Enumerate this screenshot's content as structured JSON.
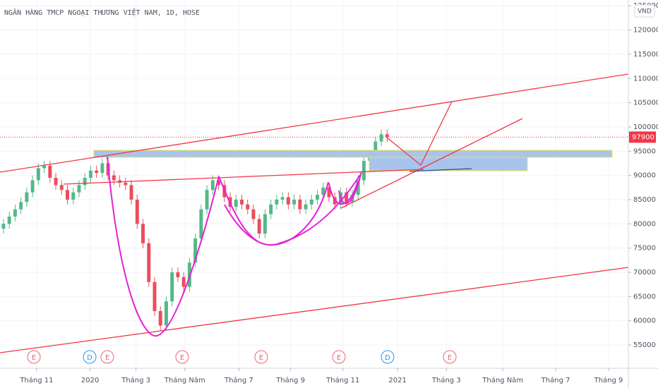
{
  "chart_data": {
    "type": "candlestick",
    "title": "NGÂN HÀNG TMCP NGOẠI THƯƠNG VIỆT NAM, 1D, HOSE",
    "currency": "VND",
    "up_color": "#53b987",
    "down_color": "#eb4d5c",
    "open": [
      79000,
      80000,
      81500,
      83000,
      84500,
      86500,
      89000,
      91500,
      92000,
      89500,
      88000,
      87000,
      85000,
      86500,
      88000,
      89500,
      91000,
      90500,
      92500,
      90000,
      89000,
      88500,
      88000,
      85000,
      80000,
      76000,
      68000,
      62000,
      59000,
      64000,
      70000,
      69000,
      67000,
      72000,
      77000,
      83000,
      87000,
      89000,
      88000,
      85500,
      83500,
      85000,
      84000,
      83000,
      81000,
      78000,
      82000,
      84000,
      85000,
      85500,
      84000,
      85000,
      83000,
      84000,
      85000,
      86000,
      87500,
      85500,
      84000,
      86500,
      84500,
      86000,
      89000,
      93000,
      94000,
      97000,
      98500
    ],
    "high": [
      81000,
      82500,
      84000,
      85500,
      87500,
      90000,
      92500,
      93000,
      93000,
      90500,
      89000,
      88000,
      87500,
      89000,
      90500,
      92000,
      92000,
      93500,
      94500,
      91000,
      90000,
      89500,
      89000,
      86000,
      81000,
      77000,
      69000,
      63000,
      65000,
      71000,
      71000,
      70000,
      73000,
      78000,
      84000,
      88000,
      90000,
      90000,
      89000,
      86500,
      86000,
      86000,
      85000,
      84000,
      82000,
      83000,
      85000,
      86000,
      86500,
      86500,
      86000,
      86000,
      85000,
      86000,
      87000,
      88500,
      88500,
      86500,
      87500,
      87500,
      87000,
      90000,
      94000,
      95000,
      98000,
      99500,
      99500
    ],
    "low": [
      78000,
      79000,
      80500,
      82000,
      83500,
      85500,
      88000,
      90500,
      88500,
      87000,
      86000,
      84000,
      84000,
      85500,
      87000,
      88500,
      89500,
      89500,
      89000,
      88000,
      87500,
      87000,
      84000,
      79000,
      75000,
      67000,
      61000,
      58000,
      58000,
      63000,
      68000,
      66000,
      66000,
      71000,
      76000,
      82000,
      86000,
      87000,
      84500,
      82500,
      82500,
      83000,
      82000,
      80000,
      77000,
      77000,
      81000,
      83000,
      84000,
      83000,
      83000,
      82000,
      82000,
      83000,
      84000,
      85000,
      84500,
      83000,
      83000,
      83500,
      83500,
      85000,
      88000,
      92000,
      93000,
      96000,
      96900
    ],
    "close": [
      80000,
      81500,
      83000,
      84500,
      86500,
      89000,
      91500,
      92000,
      89500,
      88000,
      87000,
      85000,
      86500,
      88000,
      89500,
      91000,
      90500,
      92500,
      90000,
      89000,
      88500,
      88000,
      85000,
      80000,
      76000,
      68000,
      62000,
      59000,
      64000,
      70000,
      69000,
      67000,
      72000,
      77000,
      83000,
      87000,
      89000,
      88000,
      85500,
      83500,
      85000,
      84000,
      83000,
      81000,
      78000,
      82000,
      84000,
      85000,
      85500,
      84000,
      85000,
      83000,
      84000,
      85000,
      86000,
      87500,
      85500,
      84000,
      86500,
      84500,
      86000,
      89000,
      93000,
      94000,
      97000,
      98500,
      97900
    ],
    "last_price": 97900,
    "last_price_color": "#f23645",
    "ylim": [
      50200,
      126200
    ],
    "yticks": [
      55000,
      60000,
      65000,
      70000,
      75000,
      80000,
      85000,
      90000,
      95000,
      100000,
      105000,
      110000,
      115000,
      120000,
      125000
    ],
    "xlim": [
      -0.6,
      107.5
    ],
    "xticks": [
      {
        "value": 5.7,
        "label": "Tháng 11"
      },
      {
        "value": 14.9,
        "label": "2020"
      },
      {
        "value": 22.8,
        "label": "Tháng 3"
      },
      {
        "value": 31.2,
        "label": "Tháng Năm"
      },
      {
        "value": 40.5,
        "label": "Tháng 7"
      },
      {
        "value": 49.4,
        "label": "Tháng 9"
      },
      {
        "value": 58.4,
        "label": "Tháng 11"
      },
      {
        "value": 67.8,
        "label": "2021"
      },
      {
        "value": 76.2,
        "label": "Tháng 3"
      },
      {
        "value": 85.9,
        "label": "Tháng Năm"
      },
      {
        "value": 95.0,
        "label": "Tháng 7"
      },
      {
        "value": 104.1,
        "label": "Tháng 9"
      }
    ],
    "grid": true,
    "events": [
      "E",
      "D",
      "E",
      "E",
      "E",
      "E",
      "D",
      "E"
    ]
  }
}
